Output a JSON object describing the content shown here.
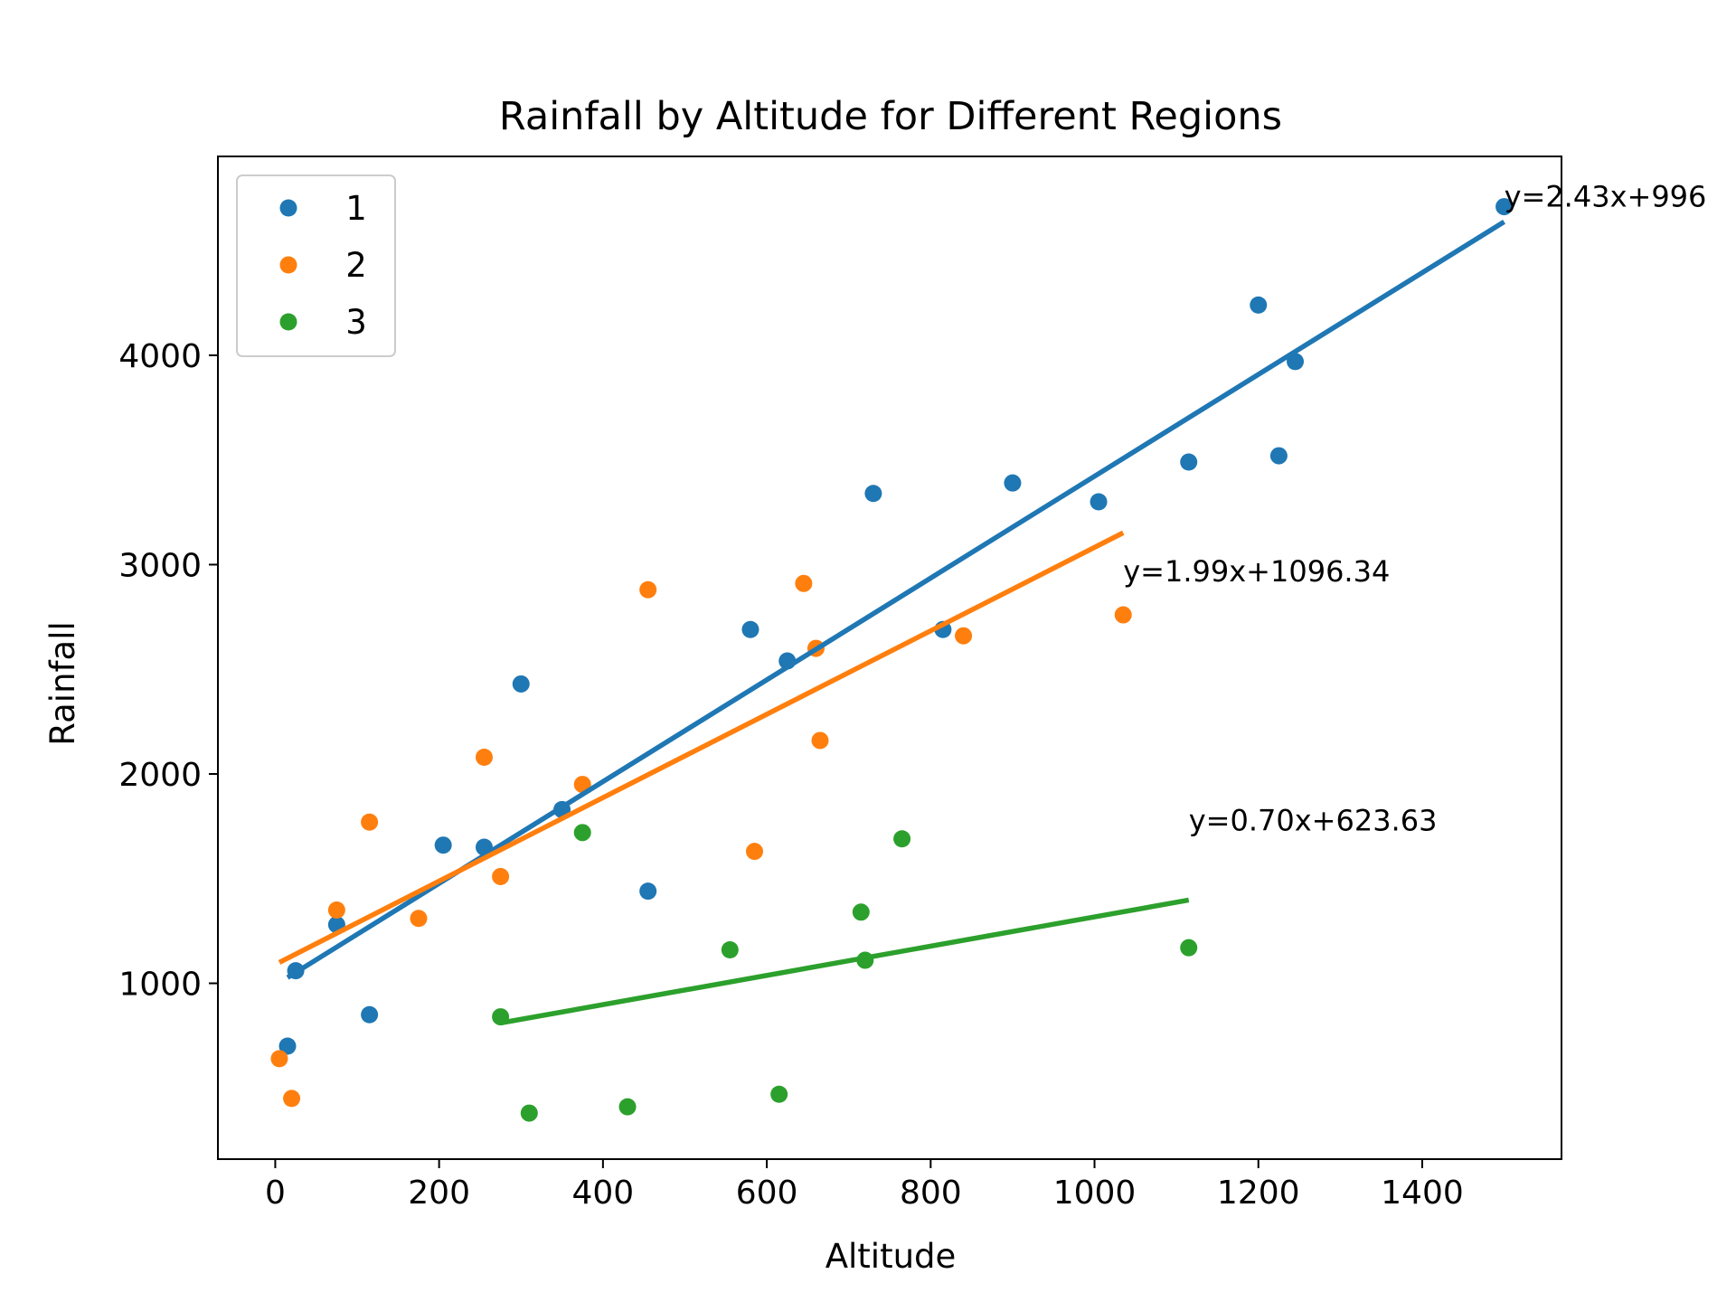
{
  "chart_data": {
    "type": "scatter",
    "title": "Rainfall by Altitude for Different Regions",
    "xlabel": "Altitude",
    "ylabel": "Rainfall",
    "xlim": [
      -70,
      1570
    ],
    "ylim": [
      160,
      4950
    ],
    "xticks": [
      0,
      200,
      400,
      600,
      800,
      1000,
      1200,
      1400
    ],
    "yticks": [
      1000,
      2000,
      3000,
      4000
    ],
    "grid": false,
    "legend_position": "top-left",
    "series": [
      {
        "name": "1",
        "color": "#1f77b4",
        "points": [
          [
            15,
            700
          ],
          [
            25,
            1060
          ],
          [
            75,
            1280
          ],
          [
            115,
            850
          ],
          [
            205,
            1660
          ],
          [
            255,
            1650
          ],
          [
            300,
            2430
          ],
          [
            350,
            1830
          ],
          [
            455,
            1440
          ],
          [
            580,
            2690
          ],
          [
            625,
            2540
          ],
          [
            730,
            3340
          ],
          [
            815,
            2690
          ],
          [
            900,
            3390
          ],
          [
            1005,
            3300
          ],
          [
            1115,
            3490
          ],
          [
            1200,
            4240
          ],
          [
            1225,
            3520
          ],
          [
            1245,
            3970
          ],
          [
            1500,
            4710
          ]
        ],
        "fit": {
          "slope": 2.43,
          "intercept": 996,
          "x_range": [
            15,
            1500
          ]
        },
        "annotation": "y=2.43x+996",
        "annotation_pos": [
          1500,
          4710
        ]
      },
      {
        "name": "2",
        "color": "#ff7f0e",
        "points": [
          [
            5,
            640
          ],
          [
            20,
            450
          ],
          [
            75,
            1350
          ],
          [
            115,
            1770
          ],
          [
            175,
            1310
          ],
          [
            255,
            2080
          ],
          [
            275,
            1510
          ],
          [
            375,
            1950
          ],
          [
            455,
            2880
          ],
          [
            585,
            1630
          ],
          [
            645,
            2910
          ],
          [
            660,
            2600
          ],
          [
            665,
            2160
          ],
          [
            840,
            2660
          ],
          [
            1035,
            2760
          ]
        ],
        "fit": {
          "slope": 1.99,
          "intercept": 1096.34,
          "x_range": [
            5,
            1035
          ]
        },
        "annotation": "y=1.99x+1096.34",
        "annotation_pos": [
          1035,
          2920
        ]
      },
      {
        "name": "3",
        "color": "#2ca02c",
        "points": [
          [
            275,
            840
          ],
          [
            310,
            380
          ],
          [
            375,
            1720
          ],
          [
            430,
            410
          ],
          [
            555,
            1160
          ],
          [
            615,
            470
          ],
          [
            715,
            1340
          ],
          [
            720,
            1110
          ],
          [
            765,
            1690
          ],
          [
            1115,
            1170
          ]
        ],
        "fit": {
          "slope": 0.7,
          "intercept": 623.63,
          "x_range": [
            275,
            1115
          ]
        },
        "annotation": "y=0.70x+623.63",
        "annotation_pos": [
          1115,
          1730
        ]
      }
    ]
  }
}
